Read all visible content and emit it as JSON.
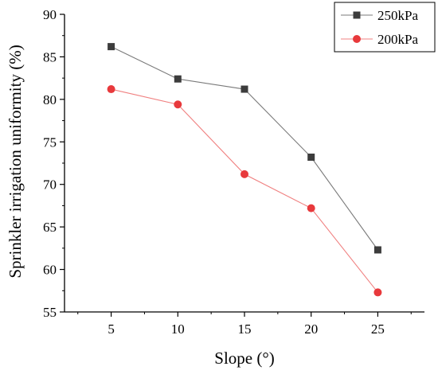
{
  "chart_data": {
    "type": "line",
    "title": "",
    "xlabel": "Slope (°)",
    "ylabel": "Sprinkler irrigation uniformity (%)",
    "x": [
      5,
      10,
      15,
      20,
      25
    ],
    "x_ticks": [
      "5",
      "10",
      "15",
      "20",
      "25"
    ],
    "xlim": [
      1.5,
      28.5
    ],
    "ylim": [
      55,
      90
    ],
    "y_ticks": [
      "55",
      "60",
      "65",
      "70",
      "75",
      "80",
      "85",
      "90"
    ],
    "grid": false,
    "legend_position": "top-right",
    "series": [
      {
        "name": "250kPa",
        "values": [
          86.2,
          82.4,
          81.2,
          73.2,
          62.3
        ],
        "color": "#3c3c3c",
        "line_color": "#7a7a7a",
        "marker": "square"
      },
      {
        "name": "200kPa",
        "values": [
          81.2,
          79.4,
          71.2,
          67.2,
          57.3
        ],
        "color": "#e8393c",
        "line_color": "#f08080",
        "marker": "circle"
      }
    ]
  }
}
